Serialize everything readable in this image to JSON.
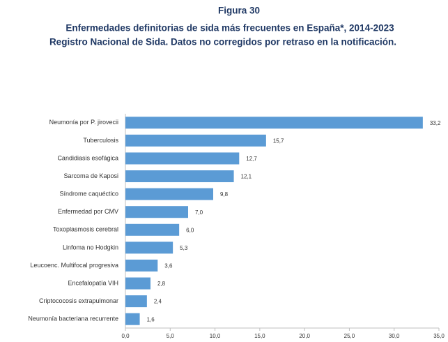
{
  "chart_data": {
    "type": "hbar",
    "title": "Figura 30",
    "subtitle": "Enfermedades definitorias de sida más frecuentes en España*, 2014-2023",
    "subtitle2": "Registro Nacional de Sida. Datos no corregidos por retraso en la notificación.",
    "categories": [
      "Neumonía por P. jirovecii",
      "Tuberculosis",
      "Candidiasis esofágica",
      "Sarcoma de Kaposi",
      "Síndrome caquéctico",
      "Enfermedad por CMV",
      "Toxoplasmosis cerebral",
      "Linfoma no Hodgkin",
      "Leucoenc. Multifocal progresiva",
      "Encefalopatía VIH",
      "Criptococosis extrapulmonar",
      "Neumonía bacteriana recurrente"
    ],
    "values": [
      33.2,
      15.7,
      12.7,
      12.1,
      9.8,
      7.0,
      6.0,
      5.3,
      3.6,
      2.8,
      2.4,
      1.6
    ],
    "value_labels": [
      "33,2",
      "15,7",
      "12,7",
      "12,1",
      "9,8",
      "7,0",
      "6,0",
      "5,3",
      "3,6",
      "2,8",
      "2,4",
      "1,6"
    ],
    "color": "#5b9bd5",
    "xlim": [
      0,
      35
    ],
    "xticks": [
      {
        "value": 0,
        "label": "0,0"
      },
      {
        "value": 5,
        "label": "5,0"
      },
      {
        "value": 10,
        "label": "10,0"
      },
      {
        "value": 15,
        "label": "15,0"
      },
      {
        "value": 20,
        "label": "20,0"
      },
      {
        "value": 25,
        "label": "25,0"
      },
      {
        "value": 30,
        "label": "30,0"
      },
      {
        "value": 35,
        "label": "35,0"
      }
    ]
  }
}
